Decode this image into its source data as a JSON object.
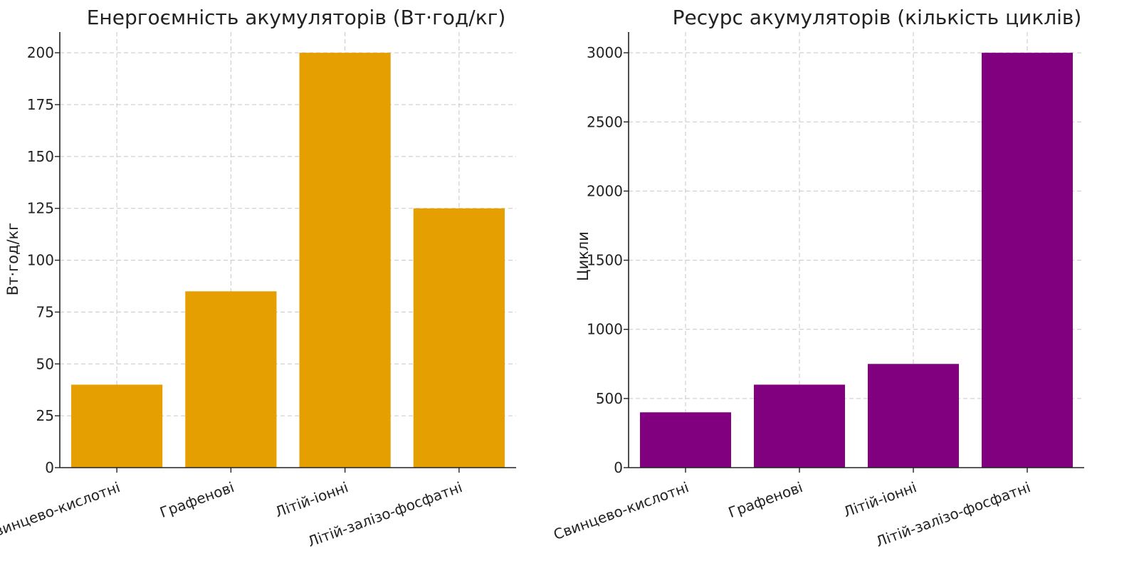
{
  "chart_data": [
    {
      "type": "bar",
      "title": "Енергоємність акумуляторів (Вт·год/кг)",
      "xlabel": "",
      "ylabel": "Вт·год/кг",
      "categories": [
        "Свинцево-кислотні",
        "Графенові",
        "Літій-іонні",
        "Літій-залізо-фосфатні"
      ],
      "values": [
        40,
        85,
        200,
        125
      ],
      "ylim": [
        0,
        210
      ],
      "yticks": [
        0,
        25,
        50,
        75,
        100,
        125,
        150,
        175,
        200
      ],
      "color": "#E69F00",
      "grid": true,
      "legend": "none"
    },
    {
      "type": "bar",
      "title": "Ресурс акумуляторів (кількість циклів)",
      "xlabel": "",
      "ylabel": "Цикли",
      "categories": [
        "Свинцево-кислотні",
        "Графенові",
        "Літій-іонні",
        "Літій-залізо-фосфатні"
      ],
      "values": [
        400,
        600,
        750,
        3000
      ],
      "ylim": [
        0,
        3150
      ],
      "yticks": [
        0,
        500,
        1000,
        1500,
        2000,
        2500,
        3000
      ],
      "color": "#800080",
      "grid": true,
      "legend": "none"
    }
  ]
}
